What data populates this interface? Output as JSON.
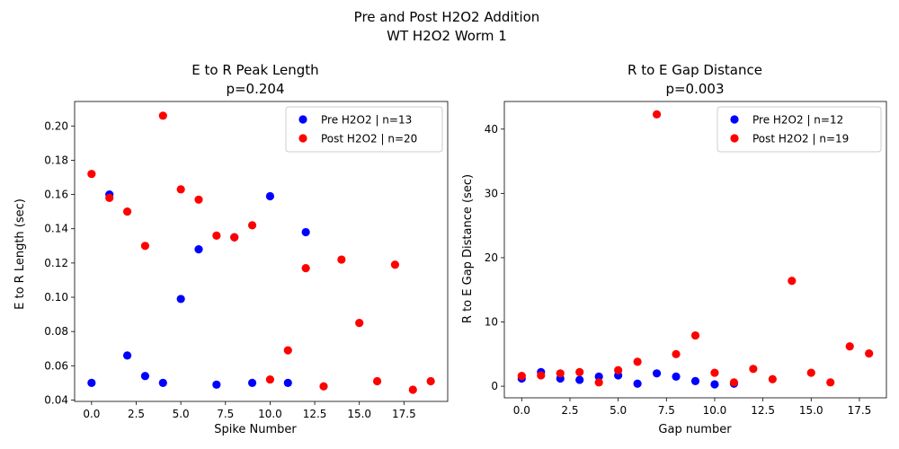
{
  "suptitle": [
    "Pre and Post H2O2 Addition",
    "WT H2O2 Worm 1"
  ],
  "colors": {
    "pre": "#0000ff",
    "post": "#ff0000"
  },
  "chart_data": [
    {
      "type": "scatter",
      "title": [
        "E to R Peak Length",
        "p=0.204"
      ],
      "xlabel": "Spike Number",
      "ylabel": "E to R Length (sec)",
      "xlim": [
        -0.95,
        19.95
      ],
      "ylim": [
        0.0392,
        0.2143
      ],
      "xticks": [
        0.0,
        2.5,
        5.0,
        7.5,
        10.0,
        12.5,
        15.0,
        17.5
      ],
      "xtick_labels": [
        "0.0",
        "2.5",
        "5.0",
        "7.5",
        "10.0",
        "12.5",
        "15.0",
        "17.5"
      ],
      "yticks": [
        0.04,
        0.06,
        0.08,
        0.1,
        0.12,
        0.14,
        0.16,
        0.18,
        0.2
      ],
      "ytick_labels": [
        "0.04",
        "0.06",
        "0.08",
        "0.10",
        "0.12",
        "0.14",
        "0.16",
        "0.18",
        "0.20"
      ],
      "legend_position": "top-right",
      "series": [
        {
          "name": "Pre H2O2 | n=13",
          "color_key": "pre",
          "x": [
            0,
            1,
            2,
            3,
            4,
            5,
            6,
            7,
            8,
            9,
            10,
            11,
            12
          ],
          "y": [
            0.05,
            0.16,
            0.066,
            0.054,
            0.05,
            0.099,
            0.128,
            0.049,
            0.135,
            0.05,
            0.159,
            0.05,
            0.138
          ]
        },
        {
          "name": "Post H2O2 | n=20",
          "color_key": "post",
          "x": [
            0,
            1,
            2,
            3,
            4,
            5,
            6,
            7,
            8,
            9,
            10,
            11,
            12,
            13,
            14,
            15,
            16,
            17,
            18,
            19
          ],
          "y": [
            0.172,
            0.158,
            0.15,
            0.13,
            0.206,
            0.163,
            0.157,
            0.136,
            0.135,
            0.142,
            0.052,
            0.069,
            0.117,
            0.048,
            0.122,
            0.085,
            0.051,
            0.119,
            0.046,
            0.051
          ]
        }
      ]
    },
    {
      "type": "scatter",
      "title": [
        "R to E Gap Distance",
        "p=0.003"
      ],
      "xlabel": "Gap number",
      "ylabel": "R to E Gap Distance (sec)",
      "xlim": [
        -0.9,
        18.9
      ],
      "ylim": [
        -1.8,
        44.3
      ],
      "xticks": [
        0.0,
        2.5,
        5.0,
        7.5,
        10.0,
        12.5,
        15.0,
        17.5
      ],
      "xtick_labels": [
        "0.0",
        "2.5",
        "5.0",
        "7.5",
        "10.0",
        "12.5",
        "15.0",
        "17.5"
      ],
      "yticks": [
        0,
        10,
        20,
        30,
        40
      ],
      "ytick_labels": [
        "0",
        "10",
        "20",
        "30",
        "40"
      ],
      "legend_position": "top-right",
      "series": [
        {
          "name": "Pre H2O2 | n=12",
          "color_key": "pre",
          "x": [
            0,
            1,
            2,
            3,
            4,
            5,
            6,
            7,
            8,
            9,
            10,
            11
          ],
          "y": [
            1.2,
            2.2,
            1.2,
            1.0,
            1.5,
            1.7,
            0.4,
            2.0,
            1.5,
            0.8,
            0.3,
            0.4
          ]
        },
        {
          "name": "Post H2O2 | n=19",
          "color_key": "post",
          "x": [
            0,
            1,
            2,
            3,
            4,
            5,
            6,
            7,
            8,
            9,
            10,
            11,
            12,
            13,
            14,
            15,
            16,
            17,
            18
          ],
          "y": [
            1.6,
            1.7,
            2.0,
            2.2,
            0.6,
            2.5,
            3.8,
            42.3,
            5.0,
            7.9,
            2.1,
            0.6,
            2.7,
            1.1,
            16.4,
            2.1,
            0.6,
            6.2,
            5.1
          ]
        }
      ]
    }
  ]
}
